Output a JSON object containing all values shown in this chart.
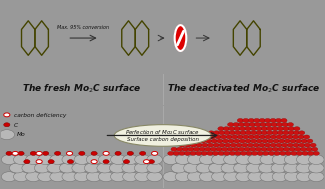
{
  "top_bg": "#8ed8e8",
  "middle_bg": "#e8e8c8",
  "bottom_bg": "#9ed4cc",
  "border_color": "#999999",
  "arrow_text": "Max. 95% conversion",
  "ellipse_text1": "Perfection of Mo",
  "ellipse_text2": "C surface",
  "ellipse_text3": "Surface carbon deposition",
  "legend1": "carbon deficiency",
  "legend2": "C",
  "legend3": "Mo",
  "mol_color": "#444400",
  "mol_lw": 1.0,
  "arrow_color": "#333333",
  "mo_color": "#b8b8b8",
  "mo_edge": "#707070",
  "c_deficiency_fill": "#ffffff",
  "c_deficiency_edge": "#cc0000",
  "c_filled_color": "#cc0000",
  "c_filled_edge": "#880000",
  "red_deposit_color": "#cc1111",
  "red_deposit_edge": "#990000",
  "ellipse_fill": "#f0f0e0",
  "ellipse_edge": "#888866",
  "no_red": "#dd0000",
  "no_white": "#ffffff"
}
